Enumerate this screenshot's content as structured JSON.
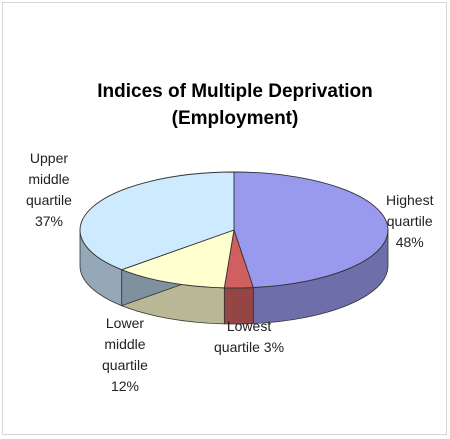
{
  "chart_data": {
    "type": "pie",
    "style": "3d-exploded",
    "title": [
      "Indices of Multiple Deprivation",
      "(Employment)"
    ],
    "slices": [
      {
        "name": "Highest quartile",
        "value": 48,
        "label_lines": [
          "Highest",
          "quartile",
          "48%"
        ],
        "color": "#9999ee"
      },
      {
        "name": "Lowest quartile",
        "value": 3,
        "label_lines": [
          "Lowest",
          "quartile 3%"
        ],
        "color": "#d06060"
      },
      {
        "name": "Lower middle quartile",
        "value": 12,
        "label_lines": [
          "Lower",
          "middle",
          "quartile",
          "12%"
        ],
        "color": "#ffffd0"
      },
      {
        "name": "Upper middle quartile",
        "value": 37,
        "label_lines": [
          "Upper",
          "middle",
          "quartile",
          "37%"
        ],
        "color": "#cdeaff"
      }
    ],
    "start_angle_deg": -90,
    "direction": "clockwise",
    "legend": "none"
  }
}
